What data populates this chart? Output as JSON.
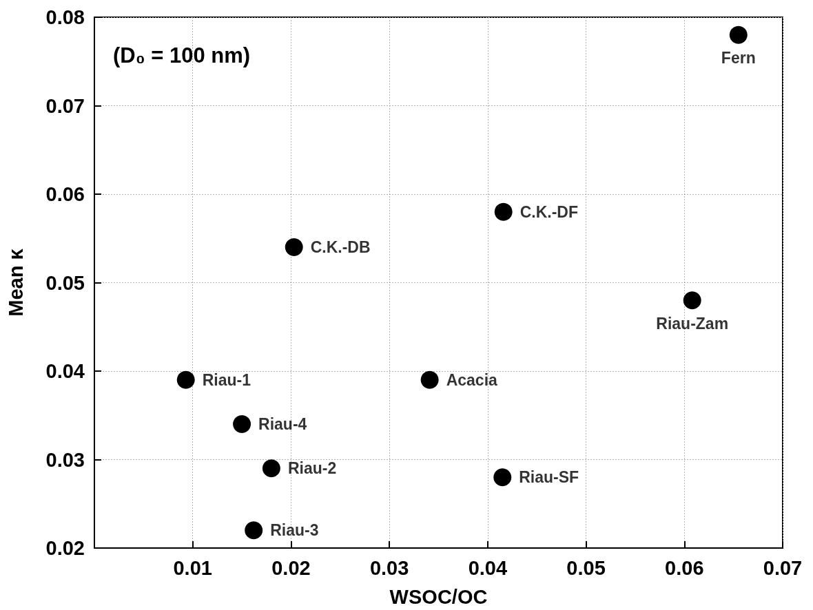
{
  "chart_data": {
    "type": "scatter",
    "xlabel": "WSOC/OC",
    "ylabel": "Mean κ",
    "x": [
      0.0655,
      0.0416,
      0.0203,
      0.0608,
      0.0093,
      0.0341,
      0.015,
      0.018,
      0.0415,
      0.0162
    ],
    "series": [
      {
        "color": "#000000",
        "values": [
          0.078,
          0.058,
          0.054,
          0.048,
          0.039,
          0.039,
          0.034,
          0.029,
          0.028,
          0.022
        ]
      }
    ],
    "xlim": [
      0,
      0.07
    ],
    "xticks": [
      0.01,
      0.02,
      0.03,
      0.04,
      0.05,
      0.06,
      0.07
    ],
    "ylim": [
      0.02,
      0.08
    ],
    "yticks": [
      0.02,
      0.03,
      0.04,
      0.05,
      0.06,
      0.07,
      0.08
    ],
    "grid": true,
    "marker": "circle",
    "annotations": [
      "(D₀ = 100 nm)",
      {
        "text": "Fern",
        "x": 0.0655,
        "y": 0.078
      },
      {
        "text": "C.K.-DF",
        "x": 0.0416,
        "y": 0.058
      },
      {
        "text": "C.K.-DB",
        "x": 0.0203,
        "y": 0.054
      },
      {
        "text": "Riau-Zam",
        "x": 0.0608,
        "y": 0.048
      },
      {
        "text": "Riau-1",
        "x": 0.0093,
        "y": 0.039
      },
      {
        "text": "Acacia",
        "x": 0.0341,
        "y": 0.039
      },
      {
        "text": "Riau-4",
        "x": 0.015,
        "y": 0.034
      },
      {
        "text": "Riau-2",
        "x": 0.018,
        "y": 0.029
      },
      {
        "text": "Riau-SF",
        "x": 0.0415,
        "y": 0.028
      },
      {
        "text": "Riau-3",
        "x": 0.0162,
        "y": 0.022
      }
    ]
  }
}
